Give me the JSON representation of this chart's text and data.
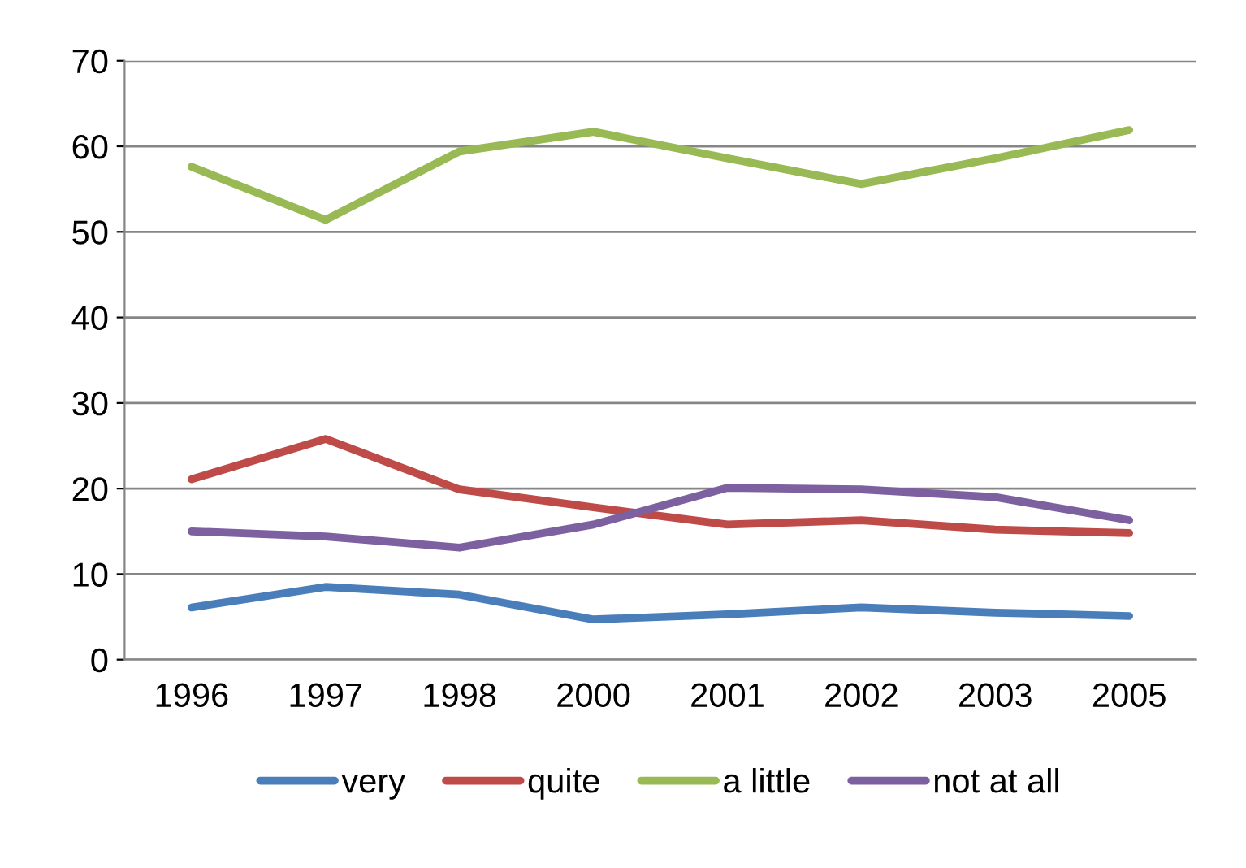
{
  "chart_data": {
    "type": "line",
    "categories": [
      "1996",
      "1997",
      "1998",
      "2000",
      "2001",
      "2002",
      "2003",
      "2005"
    ],
    "series": [
      {
        "name": "very",
        "color": "#4a7ebb",
        "values": [
          6.1,
          8.5,
          7.6,
          4.7,
          5.3,
          6.1,
          5.5,
          5.1
        ]
      },
      {
        "name": "quite",
        "color": "#be4b48",
        "values": [
          21.1,
          25.8,
          19.9,
          17.8,
          15.8,
          16.3,
          15.2,
          14.8
        ]
      },
      {
        "name": "a little",
        "color": "#98b954",
        "values": [
          57.6,
          51.4,
          59.4,
          61.7,
          58.6,
          55.6,
          58.6,
          61.9
        ]
      },
      {
        "name": "not at all",
        "color": "#7d60a0",
        "values": [
          15.0,
          14.4,
          13.1,
          15.8,
          20.1,
          19.9,
          19.0,
          16.3
        ]
      }
    ],
    "ylim": [
      0,
      70
    ],
    "yticks": [
      0,
      10,
      20,
      30,
      40,
      50,
      60,
      70
    ],
    "grid": "y",
    "legend": "bottom",
    "marker": "none",
    "line_style": "solid"
  }
}
